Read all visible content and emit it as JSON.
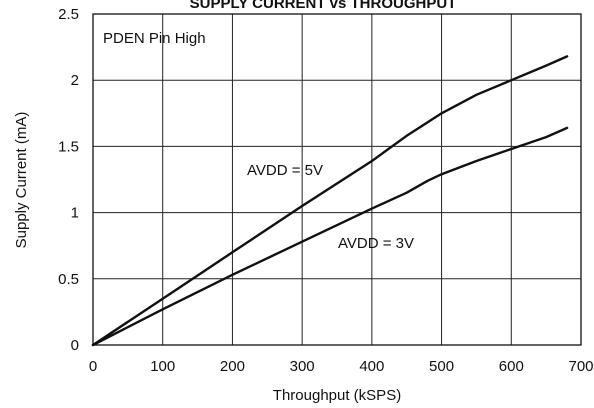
{
  "chart_data": {
    "type": "line",
    "title": "SUPPLY CURRENT vs THROUGHPUT",
    "xlabel": "Throughput (kSPS)",
    "ylabel": "Supply Current (mA)",
    "xlim": [
      0,
      700
    ],
    "ylim": [
      0,
      2.5
    ],
    "x_ticks": [
      "0",
      "100",
      "200",
      "300",
      "400",
      "500",
      "600",
      "700"
    ],
    "y_ticks": [
      "0",
      "0.5",
      "1",
      "1.5",
      "2",
      "2.5"
    ],
    "grid": true,
    "annotation": "PDEN Pin High",
    "series": [
      {
        "name": "AVDD = 5V",
        "x": [
          0,
          100,
          200,
          300,
          400,
          450,
          500,
          550,
          600,
          650,
          680
        ],
        "y": [
          0,
          0.35,
          0.7,
          1.05,
          1.39,
          1.58,
          1.75,
          1.89,
          2.0,
          2.11,
          2.18
        ]
      },
      {
        "name": "AVDD = 3V",
        "x": [
          0,
          100,
          200,
          300,
          400,
          450,
          480,
          500,
          550,
          600,
          650,
          680
        ],
        "y": [
          0,
          0.27,
          0.53,
          0.78,
          1.03,
          1.15,
          1.24,
          1.29,
          1.39,
          1.48,
          1.57,
          1.64
        ]
      }
    ]
  }
}
